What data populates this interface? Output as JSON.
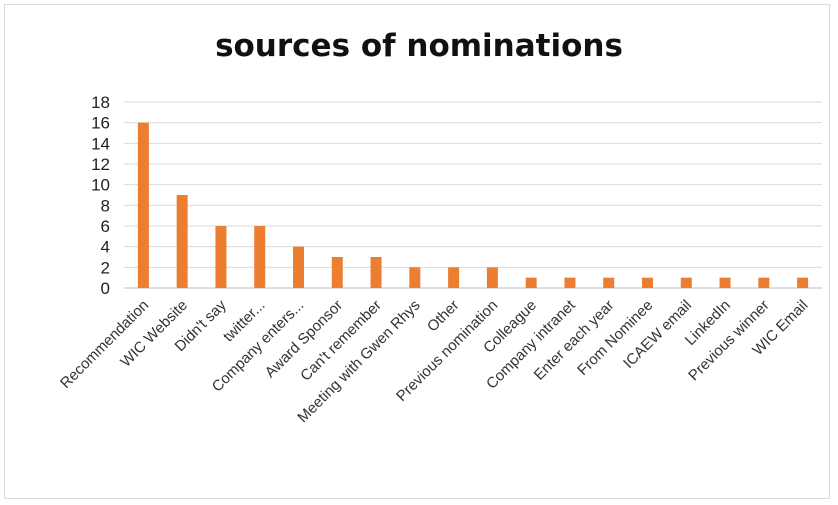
{
  "chart_data": {
    "type": "bar",
    "title": "sources of nominations",
    "xlabel": "",
    "ylabel": "",
    "ylim": [
      0,
      18
    ],
    "yticks": [
      0,
      2,
      4,
      6,
      8,
      10,
      12,
      14,
      16,
      18
    ],
    "grid": "horizontal",
    "legend": "none",
    "bar_color": "#ed7d31",
    "categories": [
      "Recommendation",
      "WIC Website",
      "Didn't say",
      "twitter...",
      "Company enters...",
      "Award Sponsor",
      "Can't remember",
      "Meeting with Gwen Rhys",
      "Other",
      "Previous nomination",
      "Colleague",
      "Company intranet",
      "Enter each year",
      "From Nominee",
      "ICAEW email",
      "LinkedIn",
      "Previous winner",
      "WIC Email"
    ],
    "values": [
      16,
      9,
      6,
      6,
      4,
      3,
      3,
      2,
      2,
      2,
      1,
      1,
      1,
      1,
      1,
      1,
      1,
      1
    ]
  }
}
